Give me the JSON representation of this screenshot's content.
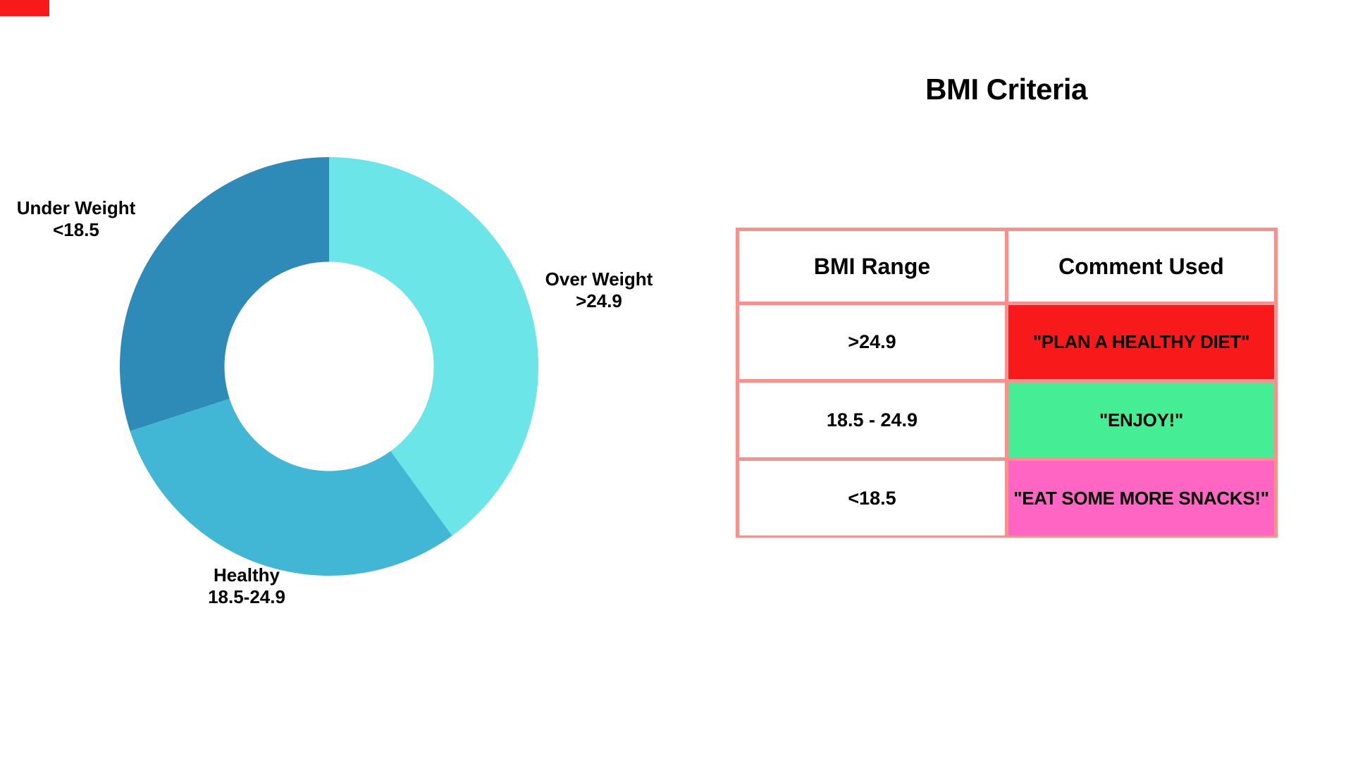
{
  "page": {
    "background": "#ffffff"
  },
  "corner_shape": {
    "color": "#F81A1A"
  },
  "chart_data": {
    "type": "pie",
    "subtype": "donut",
    "title": "",
    "legend_position": "outside-labels",
    "start_angle_deg": 0,
    "direction": "clockwise",
    "inner_radius_ratio": 0.5,
    "outer_radius_px": 297,
    "slices": [
      {
        "label": "Over Weight",
        "sublabel": ">24.9",
        "value": 40,
        "color": "#6CE5E8"
      },
      {
        "label": "Healthy",
        "sublabel": "18.5-24.9",
        "value": 30,
        "color": "#41B7D5"
      },
      {
        "label": "Under Weight",
        "sublabel": "<18.5",
        "value": 30,
        "color": "#2E8AB7"
      }
    ]
  },
  "table": {
    "title": "BMI Criteria",
    "border_color": "#F8918D",
    "headers": [
      "BMI Range",
      "Comment Used"
    ],
    "rows": [
      {
        "range": ">24.9",
        "comment": "\"PLAN A HEALTHY DIET\"",
        "comment_bg": "#F81A1A"
      },
      {
        "range": "18.5 - 24.9",
        "comment": "\"ENJOY!\"",
        "comment_bg": "#45EE95"
      },
      {
        "range": "<18.5",
        "comment": "\"EAT SOME MORE SNACKS!\"",
        "comment_bg": "#FF66C4"
      }
    ]
  }
}
